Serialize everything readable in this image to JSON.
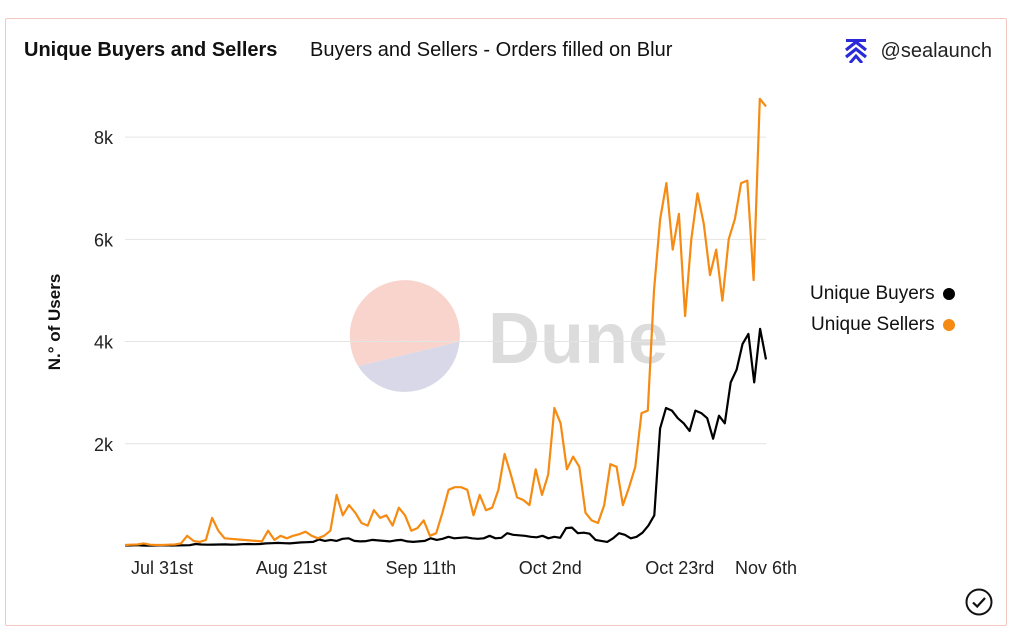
{
  "header": {
    "title": "Unique Buyers and Sellers",
    "subtitle": "Buyers and Sellers - Orders filled on Blur",
    "brand": "@sealaunch"
  },
  "watermark": {
    "text": "Dune"
  },
  "colors": {
    "buyers": "#000000",
    "sellers": "#f58b12",
    "grid": "#e4e4e4"
  },
  "chart_data": {
    "type": "line",
    "title": "Unique Buyers and Sellers",
    "subtitle": "Buyers and Sellers - Orders filled on Blur",
    "xlabel": "",
    "ylabel": "N.° of Users",
    "ylim": [
      0,
      9000
    ],
    "yticks": [
      2000,
      4000,
      6000,
      8000
    ],
    "ytick_labels": [
      "2k",
      "4k",
      "6k",
      "8k"
    ],
    "xlim": [
      0,
      104
    ],
    "xticks": [
      6,
      27,
      48,
      69,
      90,
      104
    ],
    "xtick_labels": [
      "Jul 31st",
      "Aug 21st",
      "Sep 11th",
      "Oct 2nd",
      "Oct 23rd",
      "Nov 6th"
    ],
    "legend_position": "right",
    "series": [
      {
        "name": "Unique Buyers",
        "color": "#000000",
        "values": [
          10,
          12,
          15,
          10,
          8,
          10,
          12,
          14,
          10,
          12,
          14,
          15,
          40,
          30,
          25,
          28,
          30,
          32,
          28,
          30,
          35,
          40,
          35,
          40,
          50,
          55,
          60,
          55,
          50,
          60,
          70,
          75,
          80,
          130,
          100,
          120,
          100,
          140,
          150,
          100,
          90,
          95,
          120,
          110,
          100,
          90,
          110,
          120,
          90,
          80,
          90,
          100,
          150,
          120,
          140,
          180,
          150,
          160,
          170,
          150,
          140,
          150,
          200,
          150,
          160,
          250,
          220,
          210,
          200,
          180,
          170,
          200,
          150,
          180,
          160,
          350,
          360,
          250,
          260,
          240,
          120,
          100,
          80,
          150,
          250,
          220,
          150,
          180,
          260,
          400,
          600,
          2300,
          2700,
          2650,
          2500,
          2400,
          2250,
          2650,
          2600,
          2500,
          2100,
          2550,
          2400,
          3200,
          3450,
          3950,
          4150,
          3200,
          4250,
          3650
        ]
      },
      {
        "name": "Unique Sellers",
        "color": "#f58b12",
        "values": [
          20,
          25,
          30,
          50,
          25,
          20,
          20,
          25,
          30,
          50,
          200,
          100,
          80,
          120,
          550,
          300,
          150,
          140,
          130,
          120,
          110,
          100,
          90,
          300,
          120,
          200,
          150,
          200,
          230,
          280,
          200,
          150,
          200,
          300,
          1000,
          600,
          800,
          650,
          450,
          400,
          700,
          550,
          600,
          400,
          750,
          600,
          300,
          350,
          500,
          200,
          250,
          650,
          1100,
          1150,
          1150,
          1100,
          600,
          1000,
          700,
          750,
          1100,
          1800,
          1400,
          950,
          900,
          800,
          1500,
          1000,
          1400,
          2700,
          2400,
          1500,
          1750,
          1550,
          650,
          500,
          450,
          800,
          1600,
          1550,
          800,
          1150,
          1550,
          2600,
          2650,
          5000,
          6400,
          7100,
          5800,
          6500,
          4500,
          6000,
          6900,
          6300,
          5300,
          5800,
          4800,
          6000,
          6400,
          7100,
          7150,
          5200,
          8750,
          8600
        ]
      }
    ]
  }
}
